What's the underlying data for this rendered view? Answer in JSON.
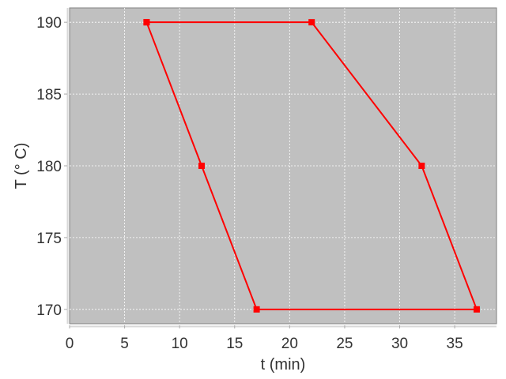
{
  "chart_data": {
    "type": "line",
    "title": "",
    "xlabel": "t (min)",
    "ylabel": "T (° C)",
    "xlim": [
      0,
      38.8
    ],
    "ylim": [
      169,
      191
    ],
    "x_ticks": [
      0,
      5,
      10,
      15,
      20,
      25,
      30,
      35
    ],
    "y_ticks": [
      170,
      175,
      180,
      185,
      190
    ],
    "grid": true,
    "background": "#c0c0c0",
    "series": [
      {
        "color": "#ff0000",
        "marker": "square",
        "x": [
          7,
          22,
          32,
          37,
          17,
          12,
          7
        ],
        "y": [
          190,
          190,
          180,
          170,
          170,
          180,
          190
        ]
      }
    ]
  }
}
